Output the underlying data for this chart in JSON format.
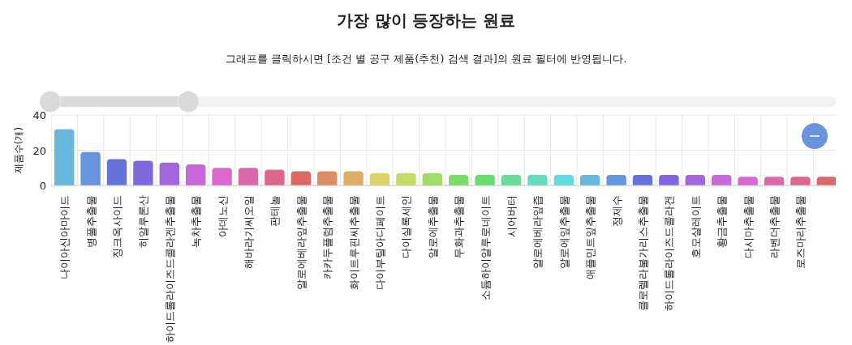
{
  "chart_data": {
    "type": "bar",
    "title": "가장 많이 등장하는 원료",
    "subtitle": "그래프를 클릭하시면 [조건 별 공구 제품(추천) 검색 결과]의 원료 필터에 반영됩니다.",
    "ylabel": "제품수(개)",
    "categories": [
      "나이아신아마이드",
      "병풀추출물",
      "징크옥사이드",
      "히알루론산",
      "하이드롤라이즈드콜라겐추출물",
      "녹차추출물",
      "아데노신",
      "해바라기씨오일",
      "판테놀",
      "알로에베라잎추출물",
      "카카두플럼추출물",
      "화이트루핀씨추출물",
      "다이부틸아디페이트",
      "다이실록세인",
      "알로에추출물",
      "무화과추출물",
      "소듐하이알루로네이트",
      "시어버터",
      "알로에베라잎즙",
      "알로에잎추출물",
      "애플민트잎추출물",
      "정제수",
      "클로렐라불가리스추출물",
      "하이드롤라이즈드콜라겐",
      "호모살레이트",
      "황금추출물",
      "다시마추출물",
      "라벤더추출물",
      "로즈마리추출물",
      null
    ],
    "values": [
      32,
      19,
      15,
      14,
      13,
      12,
      10,
      10,
      9,
      8,
      8,
      8,
      7,
      7,
      7,
      6,
      6,
      6,
      6,
      6,
      6,
      6,
      6,
      6,
      6,
      6,
      5,
      5,
      5,
      5
    ],
    "colors": [
      "#67b7dc",
      "#6794dc",
      "#6771dc",
      "#8067dc",
      "#a367dc",
      "#c767dc",
      "#dc67ce",
      "#dc67ab",
      "#dc6788",
      "#dc6967",
      "#dc8c67",
      "#dcaf67",
      "#dcd267",
      "#c3dc67",
      "#a0dc67",
      "#7ddc67",
      "#67dc75",
      "#67dc98",
      "#67dcbb",
      "#67dadc",
      "#67b7dc",
      "#6794dc",
      "#6771dc",
      "#8067dc",
      "#a367dc",
      "#c767dc",
      "#dc67ce",
      "#dc67ab",
      "#dc6788",
      "#dc6967"
    ],
    "ylim": [
      0,
      40
    ],
    "yticks": [
      0,
      20,
      40
    ],
    "grid": true
  }
}
